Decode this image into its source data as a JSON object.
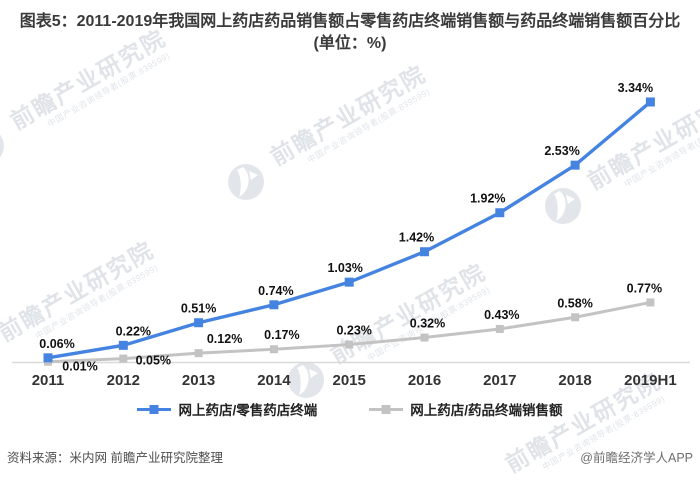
{
  "title": "图表5：2011-2019年我国网上药店药品销售额占零售药店终端销售额与药品终端销售额百分比(单位：%)",
  "source_note": "资料来源：米内网 前瞻产业研究院整理",
  "credit": "@前瞻经济学人APP",
  "watermark": {
    "brand_large": "前瞻产业研究院",
    "brand_small": "中国产业咨询领导者(股票:839599)"
  },
  "colors": {
    "series1": "#4583e0",
    "series2": "#c3c3c3",
    "axis": "#d9d9d9",
    "data_label": "#111111",
    "tick_label": "#333333"
  },
  "chart_data": {
    "type": "line",
    "title": "图表5：2011-2019年我国网上药店药品销售额占零售药店终端销售额与药品终端销售额百分比(单位：%)",
    "categories": [
      "2011",
      "2012",
      "2013",
      "2014",
      "2015",
      "2016",
      "2017",
      "2018",
      "2019H1"
    ],
    "series": [
      {
        "name": "网上药店/零售药店终端",
        "color": "#4583e0",
        "marker": "square",
        "values": [
          0.06,
          0.22,
          0.51,
          0.74,
          1.03,
          1.42,
          1.92,
          2.53,
          3.34
        ],
        "unit": "%"
      },
      {
        "name": "网上药店/药品终端销售额",
        "color": "#c3c3c3",
        "marker": "square",
        "values": [
          0.01,
          0.05,
          0.12,
          0.17,
          0.23,
          0.32,
          0.43,
          0.58,
          0.77
        ],
        "unit": "%"
      }
    ],
    "xlabel": "",
    "ylabel": "",
    "ylim": [
      0,
      3.6
    ],
    "grid": false,
    "y_axis_visible": false,
    "data_labels": true,
    "legend_position": "bottom"
  }
}
